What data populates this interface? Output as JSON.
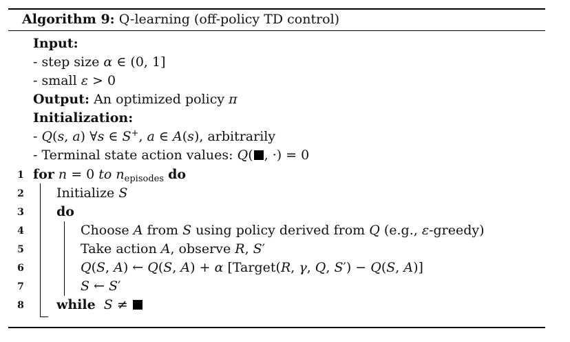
{
  "header": {
    "label": "Algorithm 9:",
    "title": "Q-learning (off-policy TD control)"
  },
  "input": {
    "heading": "Input:",
    "items": [
      "- step size",
      "- small"
    ]
  },
  "output": {
    "heading": "Output:",
    "text": "An optimized policy"
  },
  "initialization": {
    "heading": "Initialization:",
    "item1_suffix": ", arbitrarily",
    "item2_prefix": "- Terminal state action values:"
  },
  "lines": {
    "l1_for": "for",
    "l1_to": "to",
    "l1_sub": "episodes",
    "l1_do": "do",
    "l2": "Initialize",
    "l3": "do",
    "l4_a": "Choose",
    "l4_b": "from",
    "l4_c": "using policy derived from",
    "l4_d": "(e.g.,",
    "l4_e": "-greedy)",
    "l5_a": "Take action",
    "l5_b": ", observe",
    "l6_target": "Target",
    "l8": "while"
  },
  "line_numbers": [
    "1",
    "2",
    "3",
    "4",
    "5",
    "6",
    "7",
    "8"
  ]
}
